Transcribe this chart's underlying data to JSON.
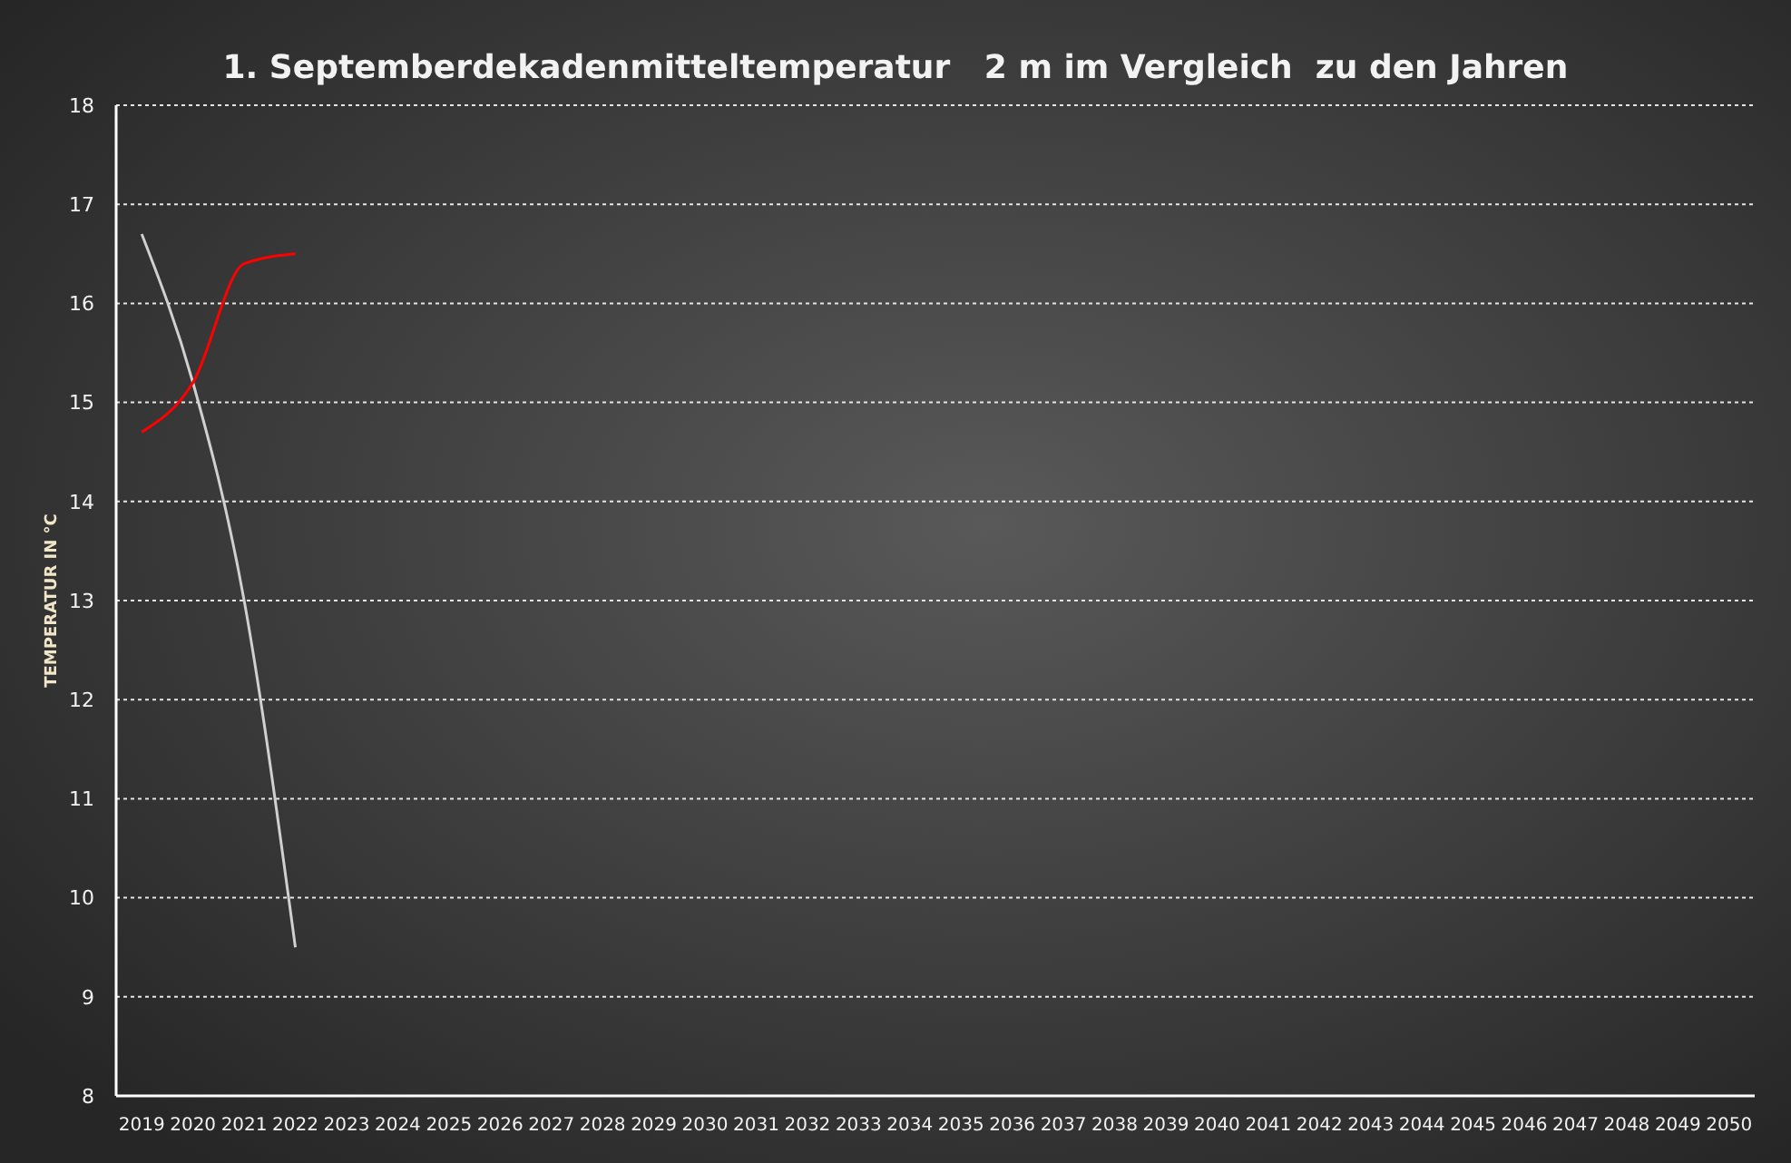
{
  "chart_data": {
    "type": "line",
    "title": "1. Septemberdekadenmitteltemperatur   2 m im Vergleich  zu den Jahren",
    "ylabel": "TEMPERATUR IN °C",
    "categories": [
      "2019",
      "2020",
      "2021",
      "2022",
      "2023",
      "2024",
      "2025",
      "2026",
      "2027",
      "2028",
      "2029",
      "2030",
      "2031",
      "2032",
      "2033",
      "2034",
      "2035",
      "2036",
      "2037",
      "2038",
      "2039",
      "2040",
      "2041",
      "2042",
      "2043",
      "2044",
      "2045",
      "2046",
      "2047",
      "2048",
      "2049",
      "2050"
    ],
    "series": [
      {
        "color": "#d0d0d0",
        "values": [
          16.7,
          15.2,
          13.0,
          9.5,
          null,
          null,
          null,
          null,
          null,
          null,
          null,
          null,
          null,
          null,
          null,
          null,
          null,
          null,
          null,
          null,
          null,
          null,
          null,
          null,
          null,
          null,
          null,
          null,
          null,
          null,
          null,
          null
        ]
      },
      {
        "color": "#ff0000",
        "values": [
          14.7,
          15.2,
          16.4,
          16.5,
          null,
          null,
          null,
          null,
          null,
          null,
          null,
          null,
          null,
          null,
          null,
          null,
          null,
          null,
          null,
          null,
          null,
          null,
          null,
          null,
          null,
          null,
          null,
          null,
          null,
          null,
          null,
          null
        ]
      }
    ],
    "ylim": [
      8,
      18
    ],
    "yticks": [
      8,
      9,
      10,
      11,
      12,
      13,
      14,
      15,
      16,
      17,
      18
    ],
    "grid": "y",
    "marker": "none",
    "line_style": "solid"
  }
}
